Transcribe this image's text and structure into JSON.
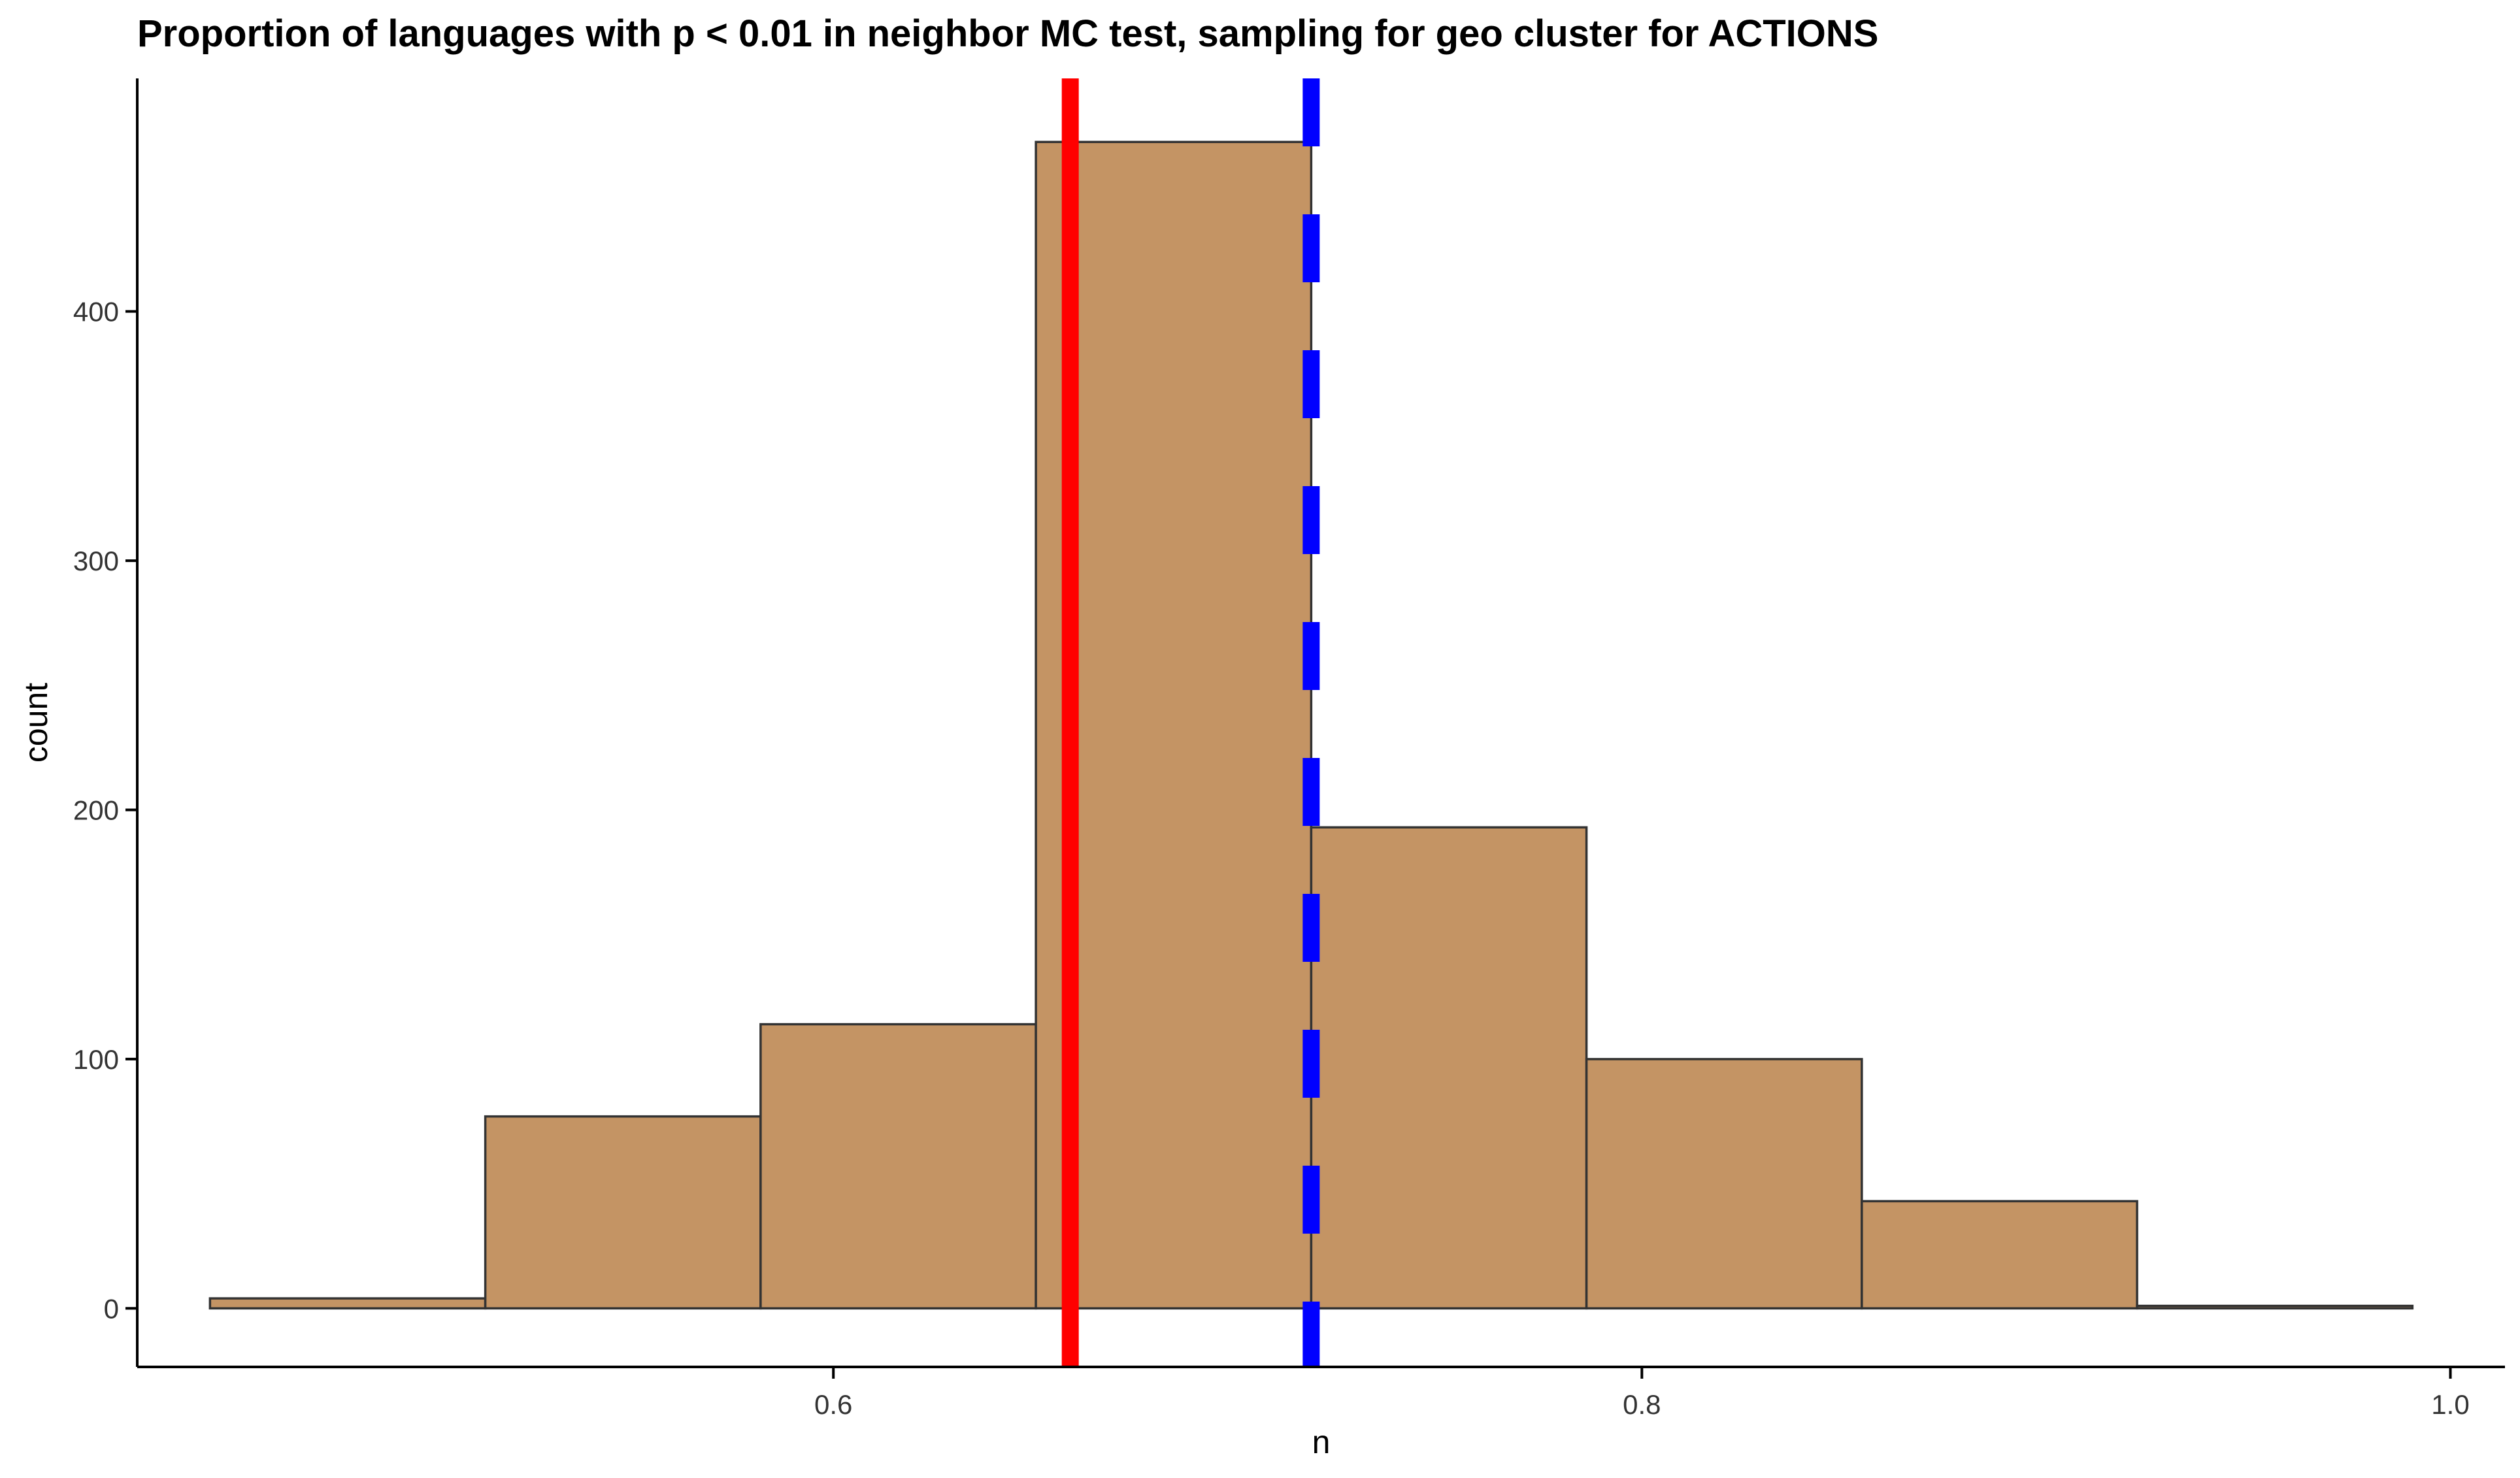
{
  "chart_data": {
    "type": "bar",
    "title": "Proportion of languages with p < 0.01 in neighbor MC test, sampling for geo cluster for ACTIONS",
    "xlabel": "n",
    "ylabel": "count",
    "xlim": [
      0.4278,
      1.0135
    ],
    "ylim": [
      -23.5,
      493.5
    ],
    "grid": false,
    "legend": "none",
    "x_ticks": [
      0.6,
      0.8,
      1.0
    ],
    "x_tick_labels": [
      "0.6",
      "0.8",
      "1.0"
    ],
    "y_ticks": [
      0,
      100,
      200,
      300,
      400
    ],
    "y_tick_labels": [
      "0",
      "100",
      "200",
      "300",
      "400"
    ],
    "bins": [
      {
        "x0": 0.4458,
        "x1": 0.5139,
        "count": 4
      },
      {
        "x0": 0.5139,
        "x1": 0.582,
        "count": 77
      },
      {
        "x0": 0.582,
        "x1": 0.6501,
        "count": 114
      },
      {
        "x0": 0.6501,
        "x1": 0.7182,
        "count": 468
      },
      {
        "x0": 0.7182,
        "x1": 0.7863,
        "count": 193
      },
      {
        "x0": 0.7863,
        "x1": 0.8544,
        "count": 100
      },
      {
        "x0": 0.8544,
        "x1": 0.9225,
        "count": 43
      },
      {
        "x0": 0.9225,
        "x1": 0.9906,
        "count": 1
      }
    ],
    "reference_lines": [
      {
        "x": 0.6586,
        "color": "#FF0000",
        "style": "solid"
      },
      {
        "x": 0.7182,
        "color": "#0000FF",
        "style": "dashed"
      }
    ],
    "colors": {
      "bar_fill": "#C49464",
      "bar_stroke": "#333333",
      "axis": "#000000",
      "text": "#000000"
    }
  }
}
